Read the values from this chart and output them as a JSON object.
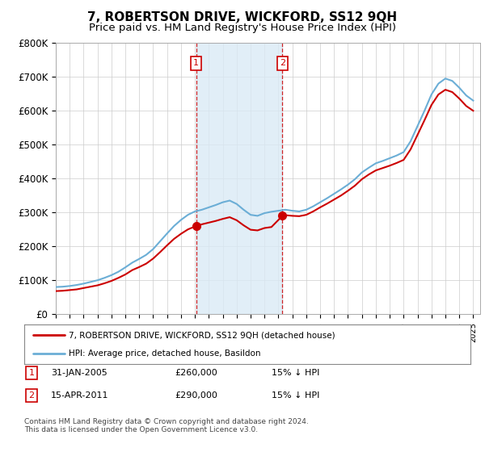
{
  "title": "7, ROBERTSON DRIVE, WICKFORD, SS12 9QH",
  "subtitle": "Price paid vs. HM Land Registry's House Price Index (HPI)",
  "hpi_color": "#6baed6",
  "price_color": "#cc0000",
  "sale1_date": 2005.08,
  "sale1_price": 260000,
  "sale1_label": "1",
  "sale2_date": 2011.29,
  "sale2_price": 290000,
  "sale2_label": "2",
  "shade_color": "#daeaf5",
  "vline_color": "#cc0000",
  "legend_label1": "7, ROBERTSON DRIVE, WICKFORD, SS12 9QH (detached house)",
  "legend_label2": "HPI: Average price, detached house, Basildon",
  "table_row1": [
    "1",
    "31-JAN-2005",
    "£260,000",
    "15% ↓ HPI"
  ],
  "table_row2": [
    "2",
    "15-APR-2011",
    "£290,000",
    "15% ↓ HPI"
  ],
  "footnote": "Contains HM Land Registry data © Crown copyright and database right 2024.\nThis data is licensed under the Open Government Licence v3.0.",
  "title_fontsize": 11,
  "subtitle_fontsize": 9.5,
  "background_color": "#ffffff",
  "grid_color": "#cccccc",
  "yticks": [
    0,
    100000,
    200000,
    300000,
    400000,
    500000,
    600000,
    700000,
    800000
  ],
  "ytick_labels": [
    "£0",
    "£100K",
    "£200K",
    "£300K",
    "£400K",
    "£500K",
    "£600K",
    "£700K",
    "£800K"
  ]
}
